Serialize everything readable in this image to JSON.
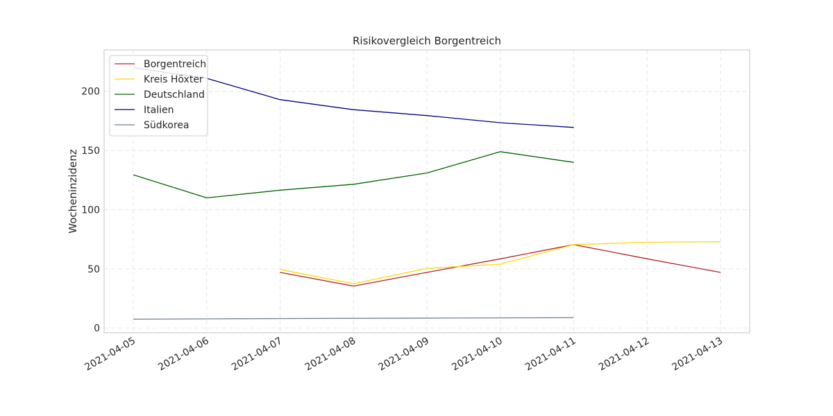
{
  "chart_data": {
    "type": "line",
    "title": "Risikovergleich Borgentreich",
    "xlabel": "",
    "ylabel": "Wocheninzidenz",
    "x": [
      "2021-04-05",
      "2021-04-06",
      "2021-04-07",
      "2021-04-08",
      "2021-04-09",
      "2021-04-10",
      "2021-04-11",
      "2021-04-12",
      "2021-04-13"
    ],
    "yticks": [
      0,
      50,
      100,
      150,
      200
    ],
    "ylim": [
      -4,
      235
    ],
    "grid": true,
    "legend_position": "top-left",
    "series": [
      {
        "name": "Borgentreich",
        "color": "#b22222",
        "values": [
          null,
          null,
          47,
          35.5,
          47,
          58.5,
          70.5,
          58.5,
          47
        ]
      },
      {
        "name": "Kreis Höxter",
        "color": "#ffd700",
        "values": [
          null,
          null,
          49.5,
          37.5,
          50.5,
          54,
          70.5,
          72.5,
          73
        ]
      },
      {
        "name": "Deutschland",
        "color": "#006400",
        "values": [
          129.5,
          110,
          116.5,
          121.5,
          131,
          149,
          140,
          null,
          null
        ]
      },
      {
        "name": "Italien",
        "color": "#000080",
        "values": [
          220,
          211,
          193,
          184.5,
          179.5,
          173.5,
          169.5,
          null,
          null
        ]
      },
      {
        "name": "Südkorea",
        "color": "#708090",
        "values": [
          7.5,
          7.8,
          8.0,
          8.2,
          8.4,
          8.6,
          8.8,
          null,
          null
        ]
      }
    ]
  }
}
